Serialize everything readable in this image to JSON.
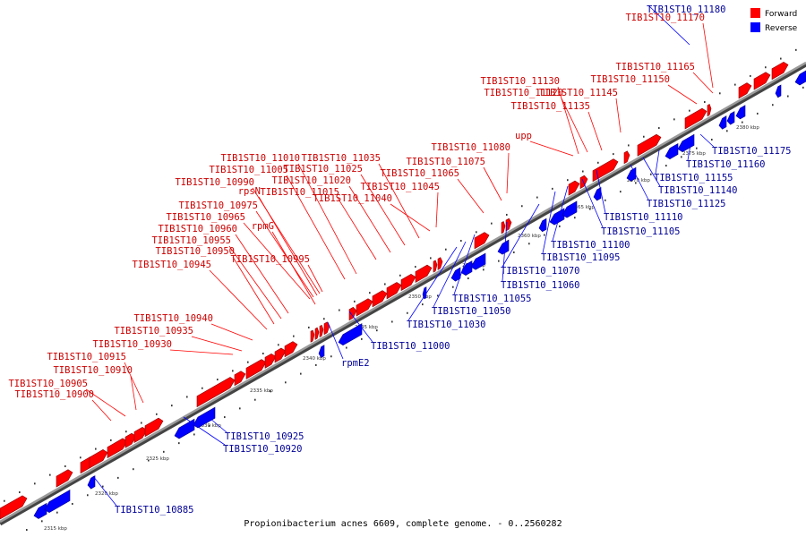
{
  "colors": {
    "forward": "#ff0000",
    "reverse": "#0000ff",
    "forward_dark": "#8b0000",
    "reverse_dark": "#00008b",
    "axis": "#808080",
    "forward_label": "#cc0000",
    "reverse_label": "#000099"
  },
  "legend": {
    "forward": "Forward",
    "reverse": "Reverse"
  },
  "caption": "Propionibacterium acnes 6609, complete genome. - 0..2560282",
  "kbp_labels": [
    "2315 kbp",
    "2320 kbp",
    "2325 kbp",
    "2330 kbp",
    "2335 kbp",
    "2340 kbp",
    "2345 kbp",
    "2350 kbp",
    "2355 kbp",
    "2360 kbp",
    "2365 kbp",
    "2370 kbp",
    "2375 kbp",
    "2380 kbp"
  ],
  "forward_labels": [
    "TIB1ST10_10900",
    "TIB1ST10_10905",
    "TIB1ST10_10910",
    "TIB1ST10_10915",
    "TIB1ST10_10930",
    "TIB1ST10_10935",
    "TIB1ST10_10940",
    "TIB1ST10_10945",
    "TIB1ST10_10950",
    "TIB1ST10_10955",
    "TIB1ST10_10960",
    "rpmG",
    "TIB1ST10_10965",
    "TIB1ST10_10975",
    "rpsN",
    "TIB1ST10_10990",
    "TIB1ST10_11005",
    "TIB1ST10_11010",
    "TIB1ST10_10995",
    "TIB1ST10_11015",
    "TIB1ST10_11020",
    "TIB1ST10_11025",
    "TIB1ST10_11035",
    "TIB1ST10_11040",
    "TIB1ST10_11045",
    "TIB1ST10_11065",
    "TIB1ST10_11075",
    "TIB1ST10_11080",
    "upp",
    "TIB1ST10_11135",
    "TIB1ST10_11120",
    "TIB1ST10_11130",
    "TIB1ST10_11145",
    "TIB1ST10_11150",
    "TIB1ST10_11165",
    "TIB1ST10_11170"
  ],
  "reverse_labels": [
    "TIB1ST10_11180",
    "TIB1ST10_11175",
    "TIB1ST10_11160",
    "TIB1ST10_11155",
    "TIB1ST10_11140",
    "TIB1ST10_11125",
    "TIB1ST10_11110",
    "TIB1ST10_11105",
    "TIB1ST10_11100",
    "TIB1ST10_11095",
    "TIB1ST10_11070",
    "TIB1ST10_11060",
    "TIB1ST10_11055",
    "TIB1ST10_11050",
    "TIB1ST10_11030",
    "TIB1ST10_11000",
    "rpmE2",
    "TIB1ST10_10925",
    "TIB1ST10_10920",
    "TIB1ST10_10885"
  ]
}
